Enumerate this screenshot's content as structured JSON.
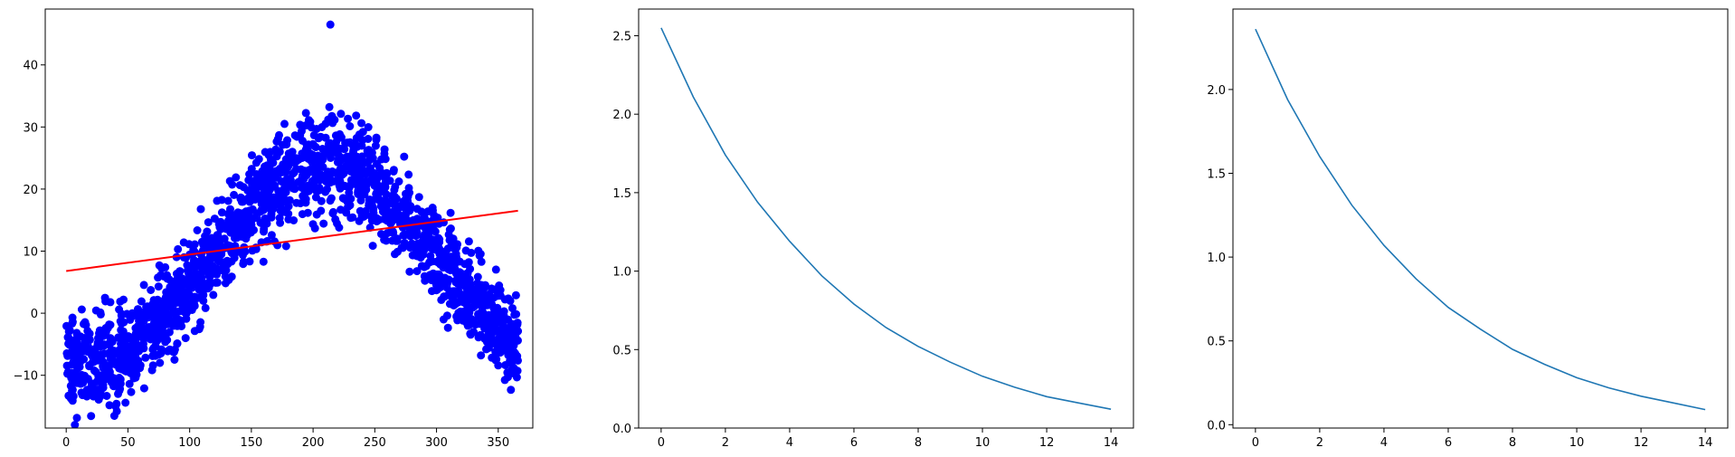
{
  "colors": {
    "scatter": "#0000ff",
    "fit_line": "#ff0000",
    "curve": "#1f77b4",
    "axes": "#000000"
  },
  "chart_data": [
    {
      "type": "scatter",
      "title": "",
      "xlabel": "",
      "ylabel": "",
      "xlim": [
        -17,
        378
      ],
      "ylim": [
        -18.5,
        49
      ],
      "grid": false,
      "xticks": [
        0,
        50,
        100,
        150,
        200,
        250,
        300,
        350
      ],
      "yticks": [
        -10,
        0,
        10,
        20,
        30,
        40
      ],
      "series": [
        {
          "kind": "scatter",
          "generator": {
            "x_range": [
              0,
              366
            ],
            "baseline": 8,
            "amplitude": 16,
            "peak_day": 210,
            "noise": 5,
            "count": 1830,
            "seed": 7
          },
          "outliers": [
            {
              "x": 214,
              "y": 46.5
            },
            {
              "x": 40,
              "y": -15
            },
            {
              "x": 41,
              "y": -15.8
            },
            {
              "x": 42,
              "y": -13
            },
            {
              "x": 25,
              "y": -11
            },
            {
              "x": 30,
              "y": -12
            }
          ]
        },
        {
          "kind": "line",
          "x": [
            0,
            366
          ],
          "y": [
            6.8,
            16.5
          ]
        }
      ]
    },
    {
      "type": "line",
      "title": "",
      "xlabel": "",
      "ylabel": "",
      "xlim": [
        -0.7,
        14.7
      ],
      "ylim": [
        0,
        2.67
      ],
      "grid": false,
      "xticks": [
        0,
        2,
        4,
        6,
        8,
        10,
        12,
        14
      ],
      "yticks": [
        0.0,
        0.5,
        1.0,
        1.5,
        2.0,
        2.5
      ],
      "series": [
        {
          "x": [
            0,
            1,
            2,
            3,
            4,
            5,
            6,
            7,
            8,
            9,
            10,
            11,
            12,
            13,
            14
          ],
          "y": [
            2.55,
            2.11,
            1.74,
            1.44,
            1.19,
            0.97,
            0.79,
            0.64,
            0.52,
            0.42,
            0.33,
            0.26,
            0.2,
            0.16,
            0.12
          ]
        }
      ]
    },
    {
      "type": "line",
      "title": "",
      "xlabel": "",
      "ylabel": "",
      "xlim": [
        -0.7,
        14.7
      ],
      "ylim": [
        -0.02,
        2.48
      ],
      "grid": false,
      "xticks": [
        0,
        2,
        4,
        6,
        8,
        10,
        12,
        14
      ],
      "yticks": [
        0.0,
        0.5,
        1.0,
        1.5,
        2.0
      ],
      "series": [
        {
          "x": [
            0,
            1,
            2,
            3,
            4,
            5,
            6,
            7,
            8,
            9,
            10,
            11,
            12,
            13,
            14
          ],
          "y": [
            2.36,
            1.94,
            1.6,
            1.31,
            1.07,
            0.87,
            0.7,
            0.57,
            0.45,
            0.36,
            0.28,
            0.22,
            0.17,
            0.13,
            0.09
          ]
        }
      ]
    }
  ]
}
